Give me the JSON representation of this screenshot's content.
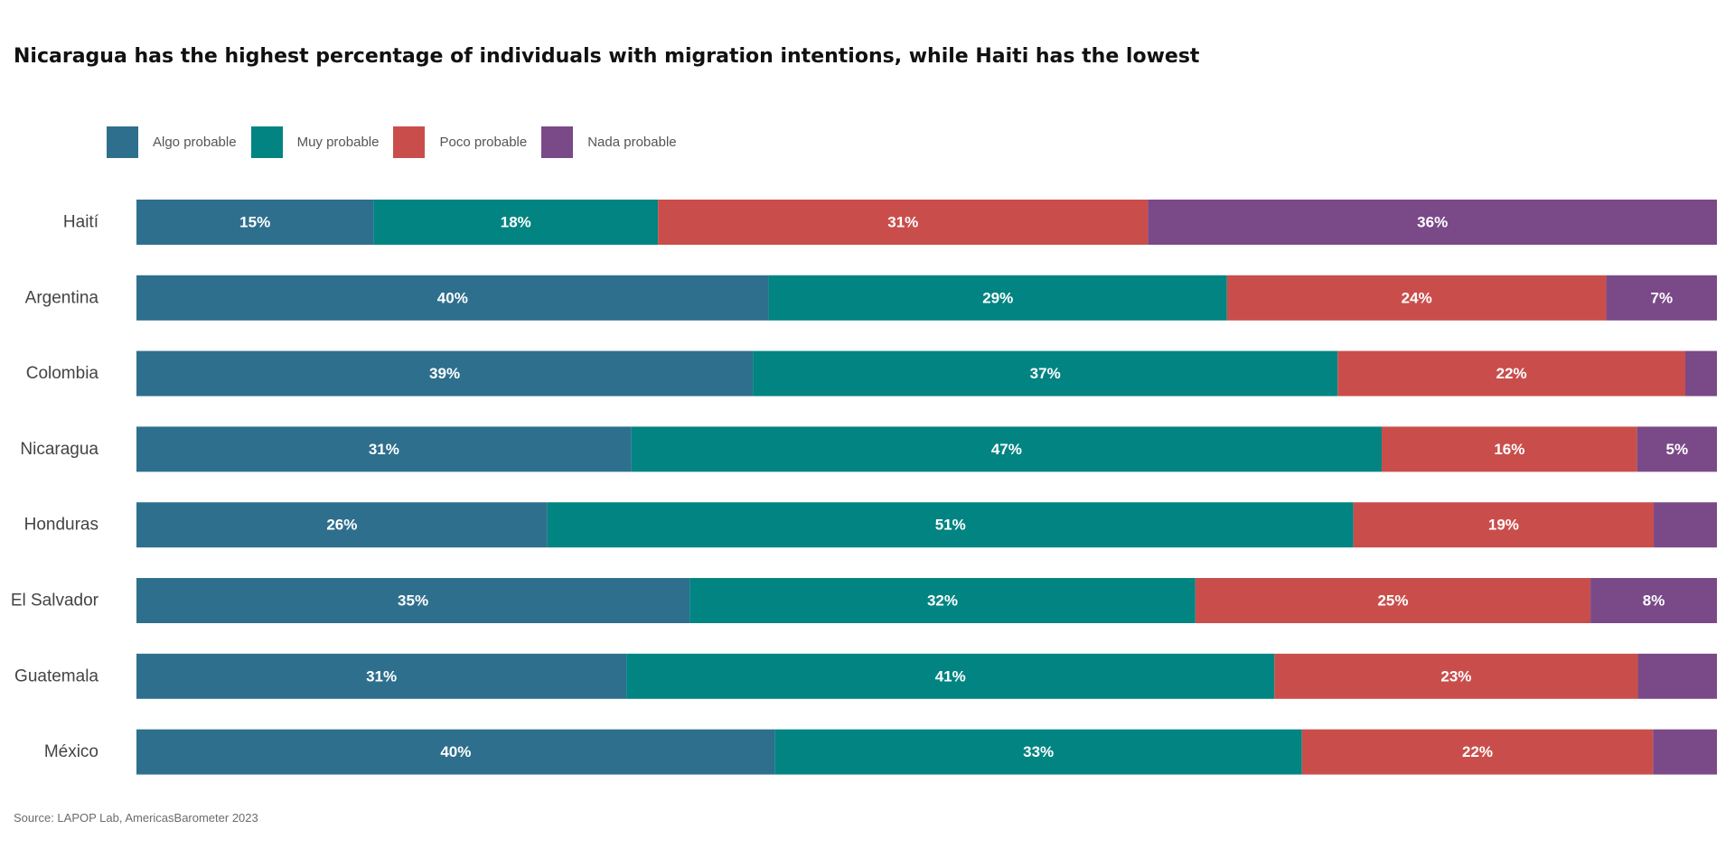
{
  "chart_data": {
    "type": "bar",
    "orientation": "horizontal",
    "stacked": true,
    "title": "Nicaragua has the highest percentage of individuals with migration intentions, while Haiti has the lowest",
    "legend_placement": "top-left",
    "grid": false,
    "xlim": [
      0,
      100
    ],
    "categories": [
      "Haití",
      "Argentina",
      "Colombia",
      "Nicaragua",
      "Honduras",
      "El Salvador",
      "Guatemala",
      "México"
    ],
    "series": [
      {
        "name": "Algo probable",
        "color": "#2e6f8e",
        "values": [
          15,
          40,
          39,
          31,
          26,
          35,
          31,
          40
        ]
      },
      {
        "name": "Muy probable",
        "color": "#028482",
        "values": [
          18,
          29,
          37,
          47,
          51,
          32,
          41,
          33
        ]
      },
      {
        "name": "Poco probable",
        "color": "#c94e4b",
        "values": [
          31,
          24,
          22,
          16,
          19,
          25,
          23,
          22
        ]
      },
      {
        "name": "Nada probable",
        "color": "#7a4988",
        "values": [
          36,
          7,
          2,
          5,
          4,
          8,
          5,
          4
        ]
      }
    ],
    "data_labels": [
      [
        "15%",
        "18%",
        "31%",
        "36%"
      ],
      [
        "40%",
        "29%",
        "24%",
        "7%"
      ],
      [
        "39%",
        "37%",
        "22%",
        ""
      ],
      [
        "31%",
        "47%",
        "16%",
        "5%"
      ],
      [
        "26%",
        "51%",
        "19%",
        ""
      ],
      [
        "35%",
        "32%",
        "25%",
        "8%"
      ],
      [
        "31%",
        "41%",
        "23%",
        ""
      ],
      [
        "40%",
        "33%",
        "22%",
        ""
      ]
    ]
  },
  "source": "Source: LAPOP Lab, AmericasBarometer 2023"
}
